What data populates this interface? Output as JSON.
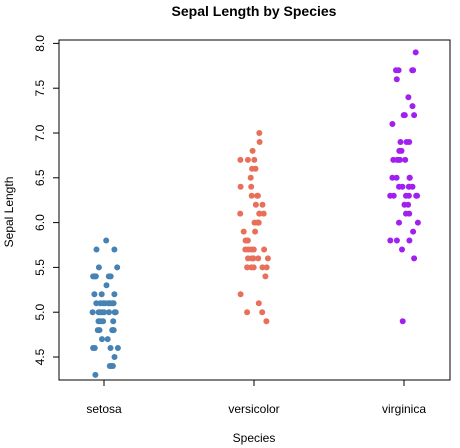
{
  "chart_data": {
    "type": "scatter",
    "title": "Sepal Length by Species",
    "xlabel": "Species",
    "ylabel": "Sepal Length",
    "categories": [
      "setosa",
      "versicolor",
      "virginica"
    ],
    "ylim": [
      4.3,
      8.0
    ],
    "yticks": [
      4.5,
      5.0,
      5.5,
      6.0,
      6.5,
      7.0,
      7.5,
      8.0
    ],
    "ytick_labels": [
      "4.5",
      "5.0",
      "5.5",
      "6.0",
      "6.5",
      "7.0",
      "7.5",
      "8.0"
    ],
    "grid": false,
    "legend": "none",
    "series": [
      {
        "category": "setosa",
        "color": "#4682b4",
        "values": [
          5.1,
          4.9,
          4.7,
          4.6,
          5.0,
          5.4,
          4.6,
          5.0,
          4.4,
          4.9,
          5.4,
          4.8,
          4.8,
          4.3,
          5.8,
          5.7,
          5.4,
          5.1,
          5.7,
          5.1,
          5.4,
          5.1,
          4.6,
          5.1,
          4.8,
          5.0,
          5.0,
          5.2,
          5.2,
          4.7,
          4.8,
          5.4,
          5.2,
          5.5,
          4.9,
          5.0,
          5.5,
          4.9,
          4.4,
          5.1,
          5.0,
          4.5,
          4.4,
          5.0,
          5.1,
          4.8,
          5.1,
          4.6,
          5.3,
          5.0
        ]
      },
      {
        "category": "versicolor",
        "color": "#e8705a",
        "values": [
          7.0,
          6.4,
          6.9,
          5.5,
          6.5,
          5.7,
          6.3,
          4.9,
          6.6,
          5.2,
          5.0,
          5.9,
          6.0,
          6.1,
          5.6,
          6.7,
          5.6,
          5.8,
          6.2,
          5.6,
          5.9,
          6.1,
          6.3,
          6.1,
          6.4,
          6.6,
          6.8,
          6.7,
          6.0,
          5.7,
          5.5,
          5.5,
          5.8,
          6.0,
          5.4,
          6.0,
          6.7,
          6.3,
          5.6,
          5.5,
          5.5,
          6.1,
          5.8,
          5.0,
          5.6,
          5.7,
          5.7,
          6.2,
          5.1,
          5.7
        ]
      },
      {
        "category": "virginica",
        "color": "#a020f0",
        "values": [
          6.3,
          5.8,
          7.1,
          6.3,
          6.5,
          7.6,
          4.9,
          7.3,
          6.7,
          7.2,
          6.5,
          6.4,
          6.8,
          5.7,
          5.8,
          6.4,
          6.5,
          7.7,
          7.7,
          6.0,
          6.9,
          5.6,
          7.7,
          6.3,
          6.7,
          7.2,
          6.2,
          6.1,
          6.4,
          7.2,
          7.4,
          7.9,
          6.4,
          6.3,
          6.1,
          7.7,
          6.3,
          6.4,
          6.0,
          6.9,
          6.7,
          6.9,
          5.8,
          6.8,
          6.7,
          6.7,
          6.3,
          6.5,
          6.2,
          5.9
        ]
      }
    ]
  }
}
